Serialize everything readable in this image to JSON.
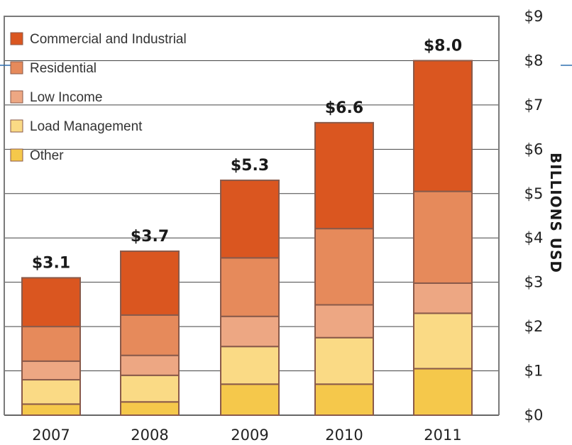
{
  "chart_data": {
    "type": "bar",
    "stacked": true,
    "categories": [
      "2007",
      "2008",
      "2009",
      "2010",
      "2011"
    ],
    "series": [
      {
        "name": "Other",
        "values": [
          0.25,
          0.3,
          0.7,
          0.7,
          1.05
        ],
        "color": "#F5C84B"
      },
      {
        "name": "Load Management",
        "values": [
          0.55,
          0.6,
          0.85,
          1.05,
          1.25
        ],
        "color": "#FADA85"
      },
      {
        "name": "Low Income",
        "values": [
          0.42,
          0.45,
          0.68,
          0.74,
          0.68
        ],
        "color": "#EDA783"
      },
      {
        "name": "Residential",
        "values": [
          0.78,
          0.91,
          1.32,
          1.72,
          2.07
        ],
        "color": "#E68A5B"
      },
      {
        "name": "Commercial and Industrial",
        "values": [
          1.1,
          1.44,
          1.75,
          2.39,
          2.95
        ],
        "color": "#DA5620"
      }
    ],
    "totals": [
      "$3.1",
      "$3.7",
      "$5.3",
      "$6.6",
      "$8.0"
    ],
    "legend": [
      "Commercial and Industrial",
      "Residential",
      "Low Income",
      "Load Management",
      "Other"
    ],
    "y_ticks": [
      "$0",
      "$1",
      "$2",
      "$3",
      "$4",
      "$5",
      "$6",
      "$7",
      "$8",
      "$9"
    ],
    "ylabel": "BILLIONS USD",
    "ylim": [
      0,
      9
    ],
    "legend_position": "top-left",
    "grid": true,
    "colors": {
      "border": "#7a7a7a",
      "grid": "#444444",
      "accent_line": "#2e6fb0"
    }
  }
}
